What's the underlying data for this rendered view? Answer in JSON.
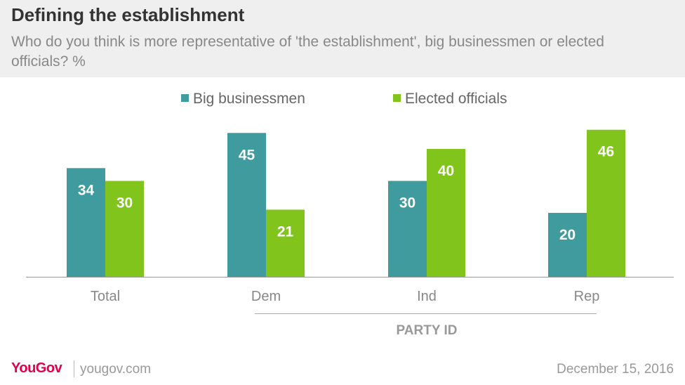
{
  "header": {
    "title": "Defining the establishment",
    "subtitle": "Who do you think is more representative of 'the establishment', big businessmen or elected officials? %"
  },
  "chart_data": {
    "type": "bar",
    "categories": [
      "Total",
      "Dem",
      "Ind",
      "Rep"
    ],
    "series": [
      {
        "name": "Big businessmen",
        "color": "#3f9b9e",
        "values": [
          34,
          45,
          30,
          20
        ]
      },
      {
        "name": "Elected officials",
        "color": "#80c41c",
        "values": [
          30,
          21,
          40,
          46
        ]
      }
    ],
    "group_label": "PARTY ID",
    "ylim": [
      0,
      50
    ],
    "grid": false,
    "legend_position": "top-center"
  },
  "footer": {
    "logo": "YouGov",
    "site": "yougov.com",
    "date": "December 15, 2016"
  }
}
